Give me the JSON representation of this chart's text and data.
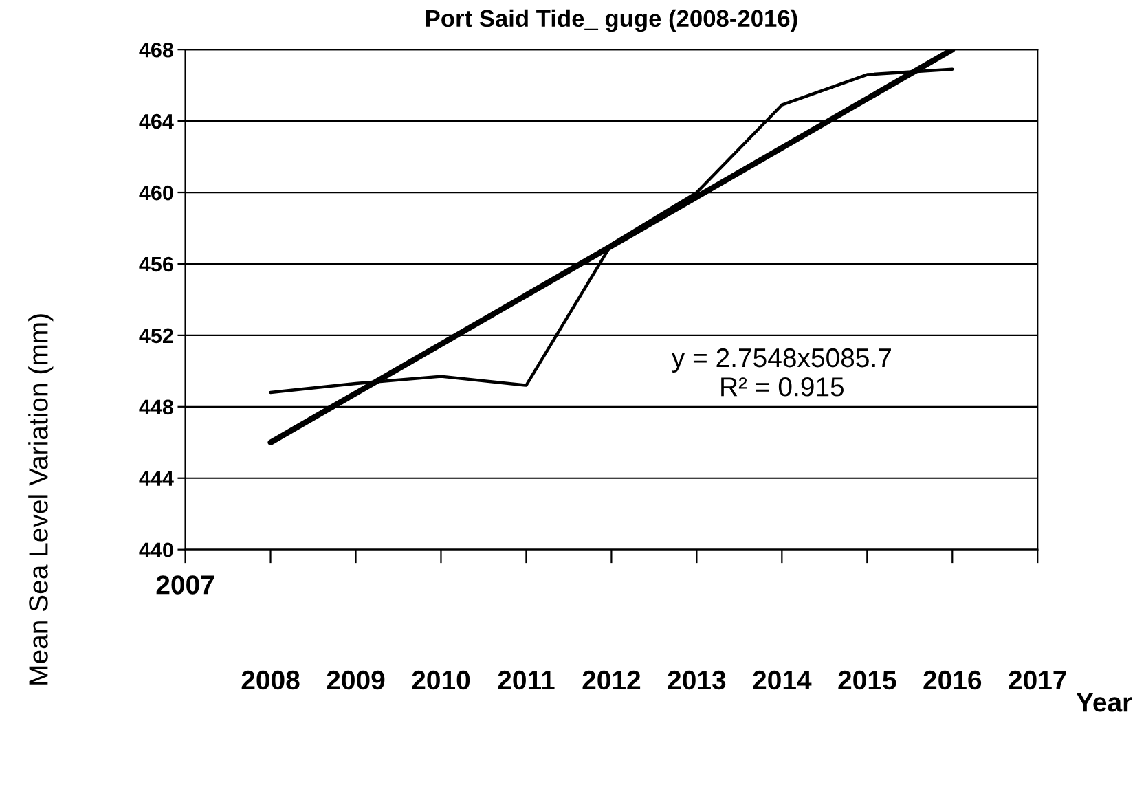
{
  "chart_data": {
    "type": "line",
    "title": "Port Said Tide_ guge (2008-2016)",
    "xlabel": "Year",
    "ylabel": "Mean Sea Level Variation (mm)",
    "series": [
      {
        "color": "#000000",
        "x": [
          2008,
          2009,
          2010,
          2011,
          2012,
          2013,
          2014,
          2015,
          2016
        ],
        "values": [
          448.8,
          449.3,
          449.7,
          449.2,
          457.1,
          460.0,
          464.9,
          466.6,
          466.9
        ]
      },
      {
        "type": "line",
        "color": "#000000",
        "x": [
          2008,
          2016
        ],
        "values": [
          446.0,
          468.0
        ]
      }
    ],
    "xlim": [
      2007,
      2017
    ],
    "xticks": [
      {
        "value": 2007,
        "label": null
      },
      2008,
      2009,
      2010,
      2011,
      2012,
      2013,
      2014,
      2015,
      2016,
      2017
    ],
    "ylim": [
      440,
      468
    ],
    "yticks": [
      440,
      444,
      448,
      452,
      456,
      460,
      464,
      468
    ],
    "grid": "y",
    "legend": false,
    "marker": "none",
    "line_style": "solid",
    "annotations": [
      "y = 2.7548x5085.7",
      "R² = 0.915",
      "2007"
    ]
  }
}
